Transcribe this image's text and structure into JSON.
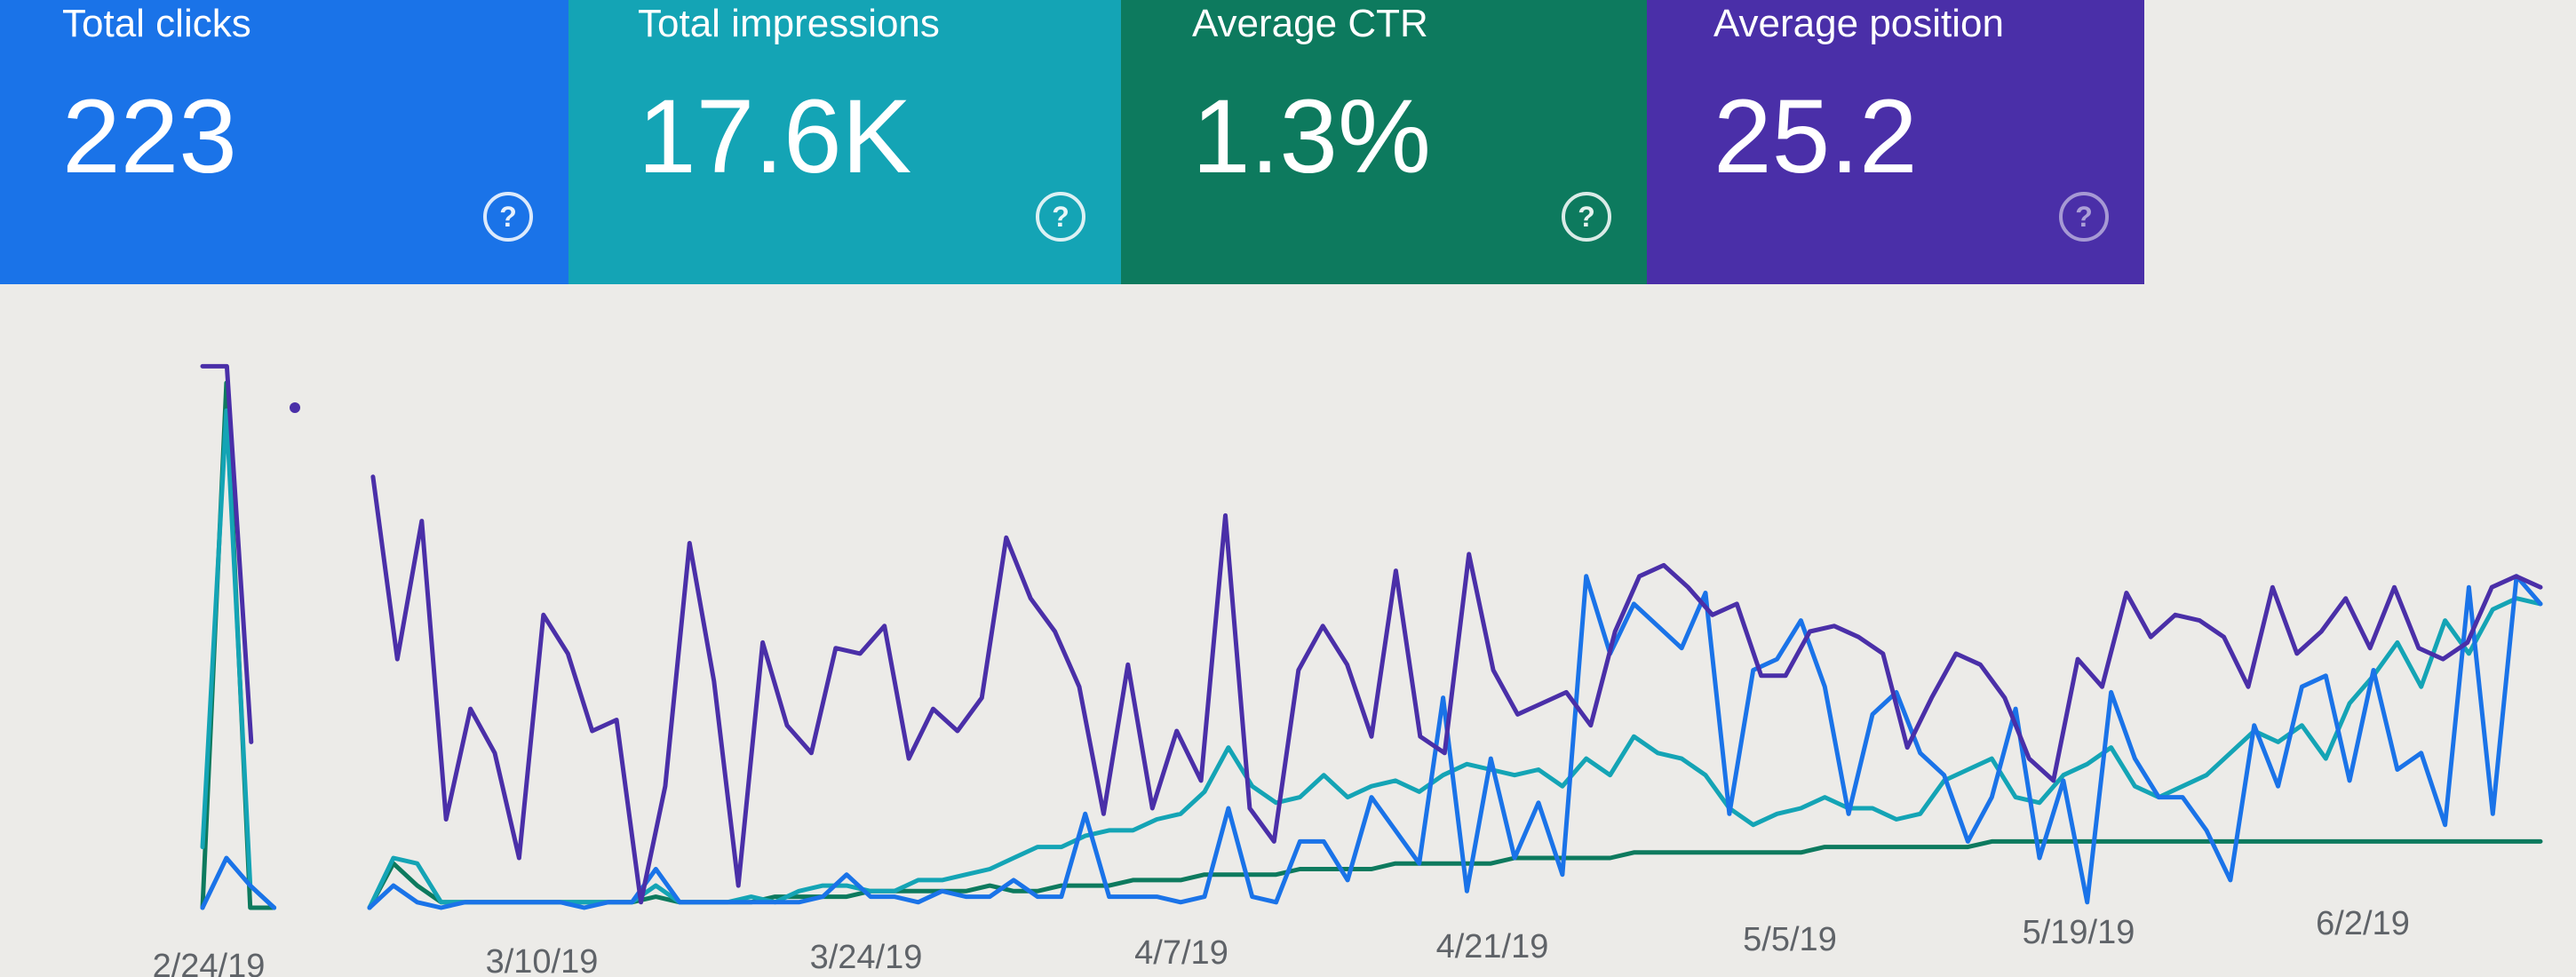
{
  "cards": [
    {
      "label": "Total clicks",
      "value": "223",
      "color": "#1a73e8",
      "help_icon": "help-circle-icon"
    },
    {
      "label": "Total impressions",
      "value": "17.6K",
      "color": "#14a4b5",
      "help_icon": "help-circle-icon"
    },
    {
      "label": "Average CTR",
      "value": "1.3%",
      "color": "#0d7a5e",
      "help_icon": "help-circle-icon"
    },
    {
      "label": "Average position",
      "value": "25.2",
      "color": "#4a2fa8",
      "help_icon": "help-circle-icon"
    }
  ],
  "chart_data": {
    "type": "line",
    "title": "",
    "xlabel": "",
    "ylabel": "",
    "grid": false,
    "x_tick_labels": [
      "2/24/19",
      "3/10/19",
      "3/24/19",
      "4/7/19",
      "4/21/19",
      "5/5/19",
      "5/19/19",
      "6/2/19"
    ],
    "value_scale": "relative 0-100 (axis values not shown)",
    "ylim": [
      0,
      100
    ],
    "series": [
      {
        "color": "#4a2fa8",
        "values": [
          98,
          98,
          30,
          null,
          null,
          null,
          null,
          78,
          45,
          70,
          16,
          36,
          28,
          9,
          53,
          46,
          32,
          34,
          1,
          22,
          66,
          41,
          4,
          48,
          33,
          28,
          47,
          46,
          51,
          27,
          36,
          32,
          38,
          67,
          56,
          50,
          40,
          17,
          44,
          18,
          32,
          23,
          71,
          18,
          12,
          43,
          51,
          44,
          31,
          61,
          31,
          28,
          64,
          43,
          35,
          37,
          39,
          33,
          50,
          60,
          62,
          58,
          53,
          55,
          42,
          42,
          50,
          51,
          49,
          46,
          29,
          38,
          46,
          44,
          38,
          27,
          23,
          45,
          40,
          57,
          49,
          53,
          52,
          49,
          40,
          58,
          46,
          50,
          56,
          47,
          58,
          47,
          45,
          48,
          58,
          60,
          58
        ]
      },
      {
        "color": "#1a73e8",
        "values": [
          0,
          9,
          4,
          0,
          null,
          null,
          null,
          0,
          4,
          1,
          0,
          1,
          1,
          1,
          1,
          1,
          0,
          1,
          1,
          7,
          1,
          1,
          1,
          1,
          1,
          1,
          2,
          6,
          2,
          2,
          1,
          3,
          2,
          2,
          5,
          2,
          2,
          17,
          2,
          2,
          2,
          1,
          2,
          18,
          2,
          1,
          12,
          12,
          5,
          20,
          14,
          8,
          38,
          3,
          27,
          9,
          19,
          6,
          60,
          46,
          55,
          51,
          47,
          57,
          17,
          43,
          45,
          52,
          40,
          17,
          35,
          39,
          28,
          24,
          12,
          20,
          36,
          9,
          23,
          1,
          39,
          27,
          20,
          20,
          14,
          5,
          33,
          22,
          40,
          42,
          23,
          43,
          25,
          28,
          15,
          58,
          17,
          60,
          55
        ]
      },
      {
        "color": "#14a4b5",
        "values": [
          11,
          90,
          4,
          0,
          null,
          null,
          null,
          0,
          9,
          8,
          1,
          1,
          1,
          1,
          1,
          1,
          1,
          1,
          1,
          4,
          1,
          1,
          1,
          2,
          1,
          3,
          4,
          4,
          3,
          3,
          5,
          5,
          6,
          7,
          9,
          11,
          11,
          13,
          14,
          14,
          16,
          17,
          21,
          29,
          22,
          19,
          20,
          24,
          20,
          22,
          23,
          21,
          24,
          26,
          25,
          24,
          25,
          22,
          27,
          24,
          31,
          28,
          27,
          24,
          18,
          15,
          17,
          18,
          20,
          18,
          18,
          16,
          17,
          23,
          25,
          27,
          20,
          19,
          24,
          26,
          29,
          22,
          20,
          22,
          24,
          28,
          32,
          30,
          33,
          27,
          37,
          42,
          48,
          40,
          52,
          46,
          54,
          56,
          55
        ]
      },
      {
        "color": "#0d7a5e",
        "values": [
          0,
          95,
          0,
          0,
          null,
          null,
          null,
          0,
          8,
          4,
          1,
          1,
          1,
          1,
          1,
          1,
          1,
          1,
          1,
          2,
          1,
          1,
          1,
          1,
          2,
          2,
          2,
          2,
          3,
          3,
          3,
          3,
          3,
          4,
          3,
          3,
          4,
          4,
          4,
          5,
          5,
          5,
          6,
          6,
          6,
          6,
          7,
          7,
          7,
          7,
          8,
          8,
          8,
          8,
          8,
          9,
          9,
          9,
          9,
          9,
          10,
          10,
          10,
          10,
          10,
          10,
          10,
          10,
          11,
          11,
          11,
          11,
          11,
          11,
          11,
          12,
          12,
          12,
          12,
          12,
          12,
          12,
          12,
          12,
          12,
          12,
          12,
          12,
          12,
          12,
          12,
          12,
          12,
          12,
          12,
          12,
          12,
          12,
          12
        ]
      }
    ]
  }
}
